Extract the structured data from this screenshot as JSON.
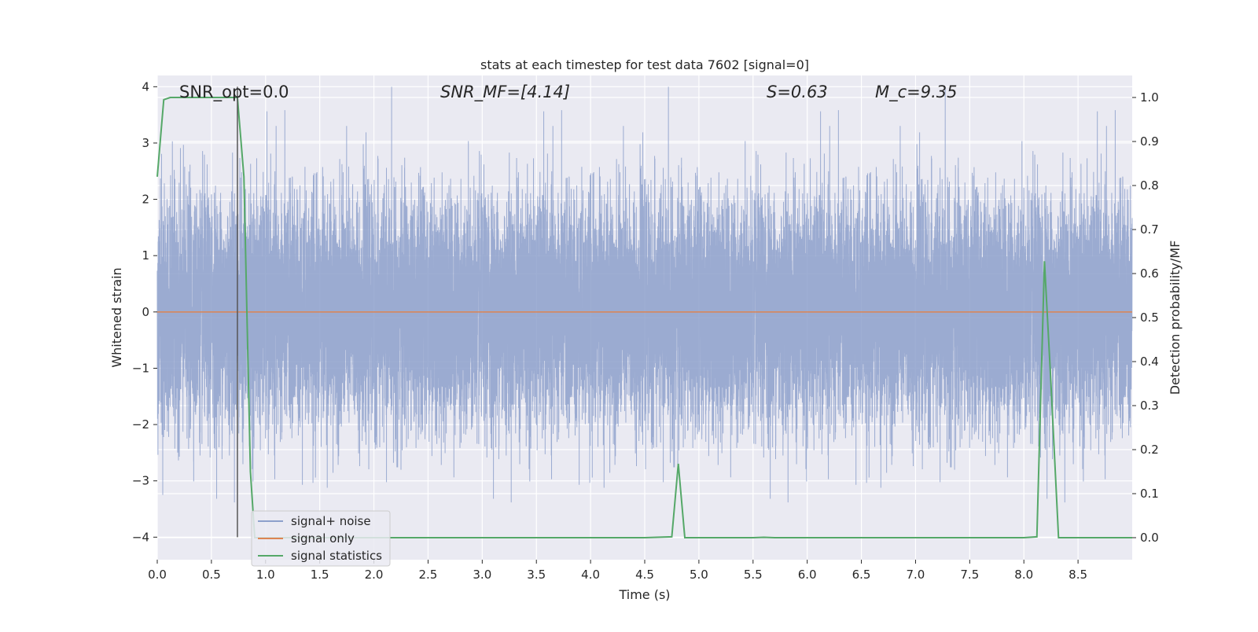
{
  "chart_data": {
    "type": "line",
    "title": "stats at each timestep for test data 7602 [signal=0]",
    "xlabel": "Time (s)",
    "ylabel": "Whitened strain",
    "y2label": "Detection probability/MF",
    "xlim": [
      0,
      9.0
    ],
    "ylim": [
      -4.4,
      4.2
    ],
    "y2lim": [
      -0.05,
      1.05
    ],
    "x_ticks": [
      0.0,
      0.5,
      1.0,
      1.5,
      2.0,
      2.5,
      3.0,
      3.5,
      4.0,
      4.5,
      5.0,
      5.5,
      6.0,
      6.5,
      7.0,
      7.5,
      8.0,
      8.5
    ],
    "x_tick_labels": [
      "0.0",
      "0.5",
      "1.0",
      "1.5",
      "2.0",
      "2.5",
      "3.0",
      "3.5",
      "4.0",
      "4.5",
      "5.0",
      "5.5",
      "6.0",
      "6.5",
      "7.0",
      "7.5",
      "8.0",
      "8.5"
    ],
    "y_ticks": [
      -4,
      -3,
      -2,
      -1,
      0,
      1,
      2,
      3,
      4
    ],
    "y_tick_labels": [
      "−4",
      "−3",
      "−2",
      "−1",
      "0",
      "1",
      "2",
      "3",
      "4"
    ],
    "y2_ticks": [
      0.0,
      0.1,
      0.2,
      0.3,
      0.4,
      0.5,
      0.6,
      0.7,
      0.8,
      0.9,
      1.0
    ],
    "y2_tick_labels": [
      "0.0",
      "0.1",
      "0.2",
      "0.3",
      "0.4",
      "0.5",
      "0.6",
      "0.7",
      "0.8",
      "0.9",
      "1.0"
    ],
    "grid": true,
    "legend_position": "lower-left",
    "annotations": {
      "snr_opt": "SNR_opt=0.0",
      "snr_mf": "SNR_MF=[4.14]",
      "s_value": "S=0.63",
      "mc_value": "M_c=9.35"
    },
    "vertical_marker": {
      "x": 0.74,
      "color": "#555555"
    },
    "series": [
      {
        "name": "signal+ noise",
        "color": "#8da0cb",
        "axis": "left",
        "kind": "noise",
        "sample_rate": 2048,
        "std": 1.0,
        "range": [
          -4.0,
          4.0
        ],
        "x_range": [
          0,
          9.0
        ]
      },
      {
        "name": "signal only",
        "color": "#dd8452",
        "axis": "left",
        "x": [
          0.0,
          9.0
        ],
        "y": [
          0.0,
          0.0
        ]
      },
      {
        "name": "signal statistics",
        "color": "#55a868",
        "axis": "right",
        "x": [
          0.0,
          0.06,
          0.12,
          0.2,
          0.3,
          0.4,
          0.5,
          0.6,
          0.68,
          0.74,
          0.8,
          0.86,
          0.9,
          1.0,
          1.5,
          2.0,
          2.5,
          3.0,
          3.5,
          4.0,
          4.5,
          4.75,
          4.81,
          4.87,
          4.93,
          5.0,
          5.5,
          5.6,
          5.7,
          6.0,
          6.5,
          7.0,
          7.5,
          8.0,
          8.12,
          8.19,
          8.25,
          8.32,
          8.5,
          9.0
        ],
        "y": [
          0.82,
          0.995,
          1.0,
          1.0,
          1.0,
          1.0,
          1.0,
          1.0,
          1.0,
          1.0,
          0.82,
          0.15,
          0.0,
          0.0,
          0.0,
          0.0,
          0.0,
          0.0,
          0.0,
          0.0,
          0.0,
          0.002,
          0.168,
          0.0,
          0.0,
          0.0,
          0.0,
          0.001,
          0.0,
          0.0,
          0.0,
          0.0,
          0.0,
          0.0,
          0.002,
          0.628,
          0.35,
          0.0,
          0.0,
          0.0
        ]
      }
    ]
  }
}
